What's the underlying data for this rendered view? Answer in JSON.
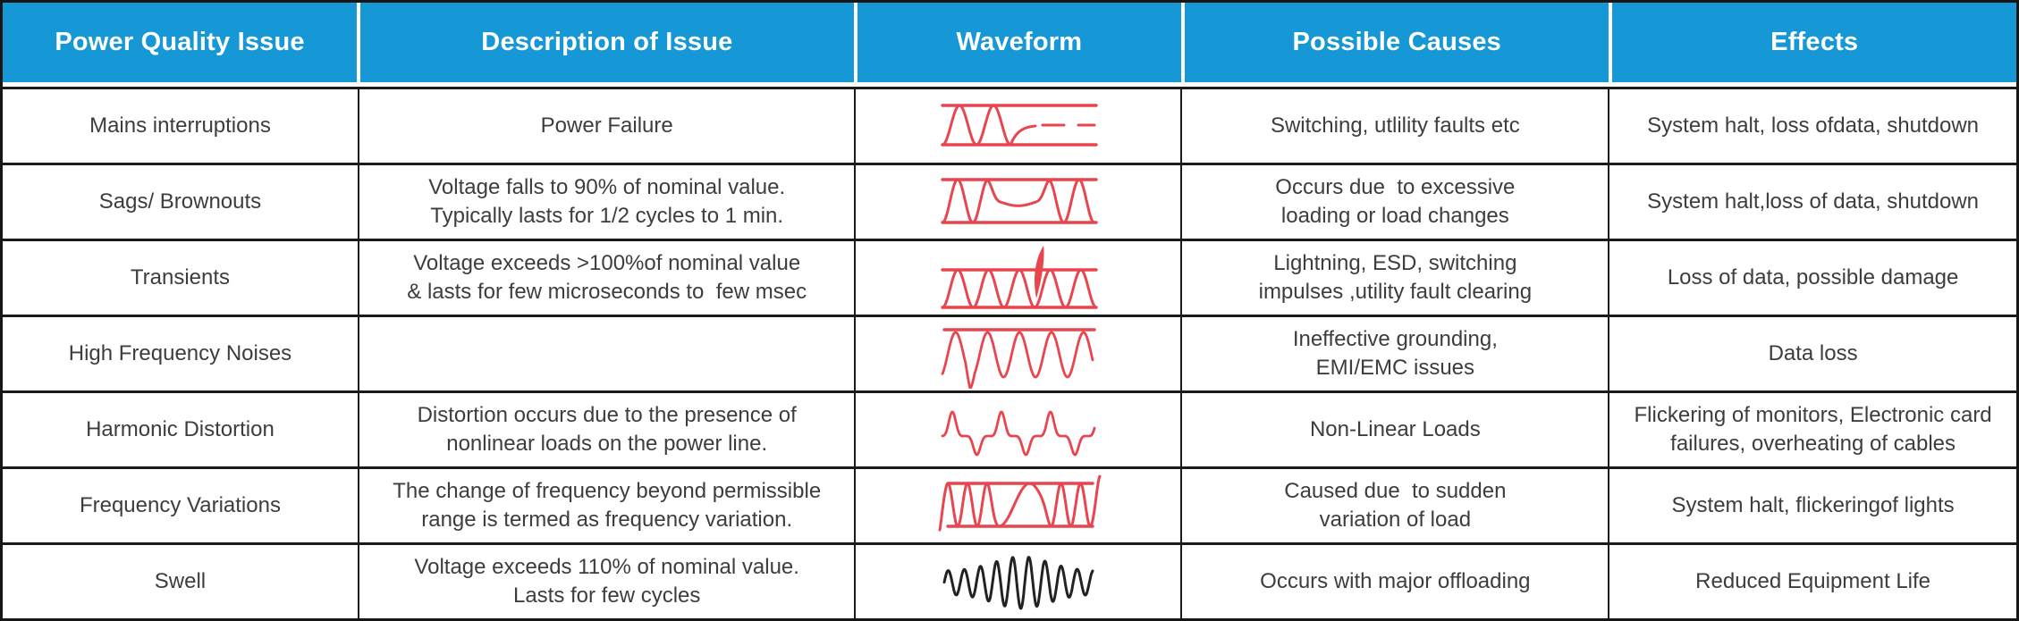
{
  "colors": {
    "header_bg": "#1697d6",
    "header_text": "#ffffff",
    "body_text": "#3d3d3d",
    "border": "#1a1a1a",
    "waveform_red": "#e8454e",
    "waveform_black": "#222222",
    "background": "#ffffff"
  },
  "table": {
    "columns": [
      {
        "key": "issue",
        "label": "Power Quality Issue"
      },
      {
        "key": "description",
        "label": "Description of Issue"
      },
      {
        "key": "waveform",
        "label": "Waveform"
      },
      {
        "key": "causes",
        "label": "Possible Causes"
      },
      {
        "key": "effects",
        "label": "Effects"
      }
    ],
    "rows": [
      {
        "issue": "Mains interruptions",
        "description_lines": [
          "Power Failure"
        ],
        "waveform_type": "interruption",
        "waveform_icon": "mains-interruption-waveform-icon",
        "waveform_color": "red",
        "causes_lines": [
          "Switching, utlility faults etc"
        ],
        "effects_lines": [
          "System halt, loss ofdata, shutdown"
        ]
      },
      {
        "issue": "Sags/ Brownouts",
        "description_lines": [
          "Voltage falls to 90% of nominal value.",
          "Typically lasts for 1/2 cycles to 1 min."
        ],
        "waveform_type": "sag",
        "waveform_icon": "voltage-sag-waveform-icon",
        "waveform_color": "red",
        "causes_lines": [
          "Occurs due  to excessive",
          "loading or load changes"
        ],
        "effects_lines": [
          "System halt,loss of data, shutdown"
        ]
      },
      {
        "issue": "Transients",
        "description_lines": [
          "Voltage exceeds >100%of nominal value",
          "& lasts for few microseconds to  few msec"
        ],
        "waveform_type": "transient",
        "waveform_icon": "transient-spike-waveform-icon",
        "waveform_color": "red",
        "causes_lines": [
          "Lightning, ESD, switching",
          "impulses ,utility fault clearing"
        ],
        "effects_lines": [
          "Loss of data, possible damage"
        ]
      },
      {
        "issue": "High Frequency Noises",
        "description_lines": [],
        "waveform_type": "hfnoise",
        "waveform_icon": "high-frequency-noise-waveform-icon",
        "waveform_color": "red",
        "causes_lines": [
          "Ineffective grounding,",
          "EMI/EMC issues"
        ],
        "effects_lines": [
          "Data loss"
        ]
      },
      {
        "issue": "Harmonic Distortion",
        "description_lines": [
          "Distortion occurs due to the presence of",
          "nonlinear loads on the power line."
        ],
        "waveform_type": "harmonic",
        "waveform_icon": "harmonic-distortion-waveform-icon",
        "waveform_color": "red",
        "causes_lines": [
          "Non-Linear Loads"
        ],
        "effects_lines": [
          "Flickering of monitors, Electronic card",
          "failures, overheating of cables"
        ]
      },
      {
        "issue": "Frequency Variations",
        "description_lines": [
          "The change of frequency beyond permissible",
          "range is termed as frequency variation."
        ],
        "waveform_type": "freqvar",
        "waveform_icon": "frequency-variation-waveform-icon",
        "waveform_color": "red",
        "causes_lines": [
          "Caused due  to sudden",
          "variation of load"
        ],
        "effects_lines": [
          "System halt, flickeringof lights"
        ]
      },
      {
        "issue": "Swell",
        "description_lines": [
          "Voltage exceeds 110% of nominal value.",
          "Lasts for few cycles"
        ],
        "waveform_type": "swell",
        "waveform_icon": "swell-waveform-icon",
        "waveform_color": "black",
        "causes_lines": [
          "Occurs with major offloading"
        ],
        "effects_lines": [
          "Reduced Equipment Life"
        ]
      }
    ]
  }
}
